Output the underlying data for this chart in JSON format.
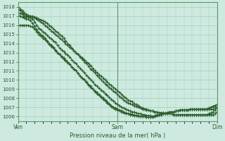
{
  "xlabel": "Pression niveau de la mer( hPa )",
  "bg_color": "#ceeae0",
  "grid_color": "#9ecfb8",
  "line_color": "#2d5e2d",
  "marker_color": "#2d5e2d",
  "ylim": [
    1005.5,
    1018.5
  ],
  "yticks": [
    1006,
    1007,
    1008,
    1009,
    1010,
    1011,
    1012,
    1013,
    1014,
    1015,
    1016,
    1017,
    1018
  ],
  "xtick_labels": [
    "Ven",
    "Sam",
    "Dim"
  ],
  "xtick_positions": [
    0,
    48,
    96
  ],
  "total_points": 97,
  "series": [
    [
      1018.0,
      1017.8,
      1017.6,
      1017.4,
      1017.2,
      1017.1,
      1017.0,
      1017.0,
      1016.9,
      1016.8,
      1016.7,
      1016.6,
      1016.5,
      1016.4,
      1016.2,
      1016.0,
      1015.8,
      1015.6,
      1015.4,
      1015.2,
      1015.0,
      1014.8,
      1014.6,
      1014.3,
      1014.0,
      1013.8,
      1013.5,
      1013.2,
      1013.0,
      1012.8,
      1012.5,
      1012.3,
      1012.0,
      1011.8,
      1011.5,
      1011.2,
      1011.0,
      1010.8,
      1010.5,
      1010.3,
      1010.0,
      1009.8,
      1009.6,
      1009.4,
      1009.2,
      1009.0,
      1008.8,
      1008.6,
      1008.4,
      1008.2,
      1008.0,
      1007.8,
      1007.6,
      1007.5,
      1007.4,
      1007.3,
      1007.2,
      1007.1,
      1007.0,
      1006.9,
      1006.8,
      1006.8,
      1006.7,
      1006.7,
      1006.6,
      1006.6,
      1006.5,
      1006.5,
      1006.4,
      1006.4,
      1006.4,
      1006.3,
      1006.3,
      1006.3,
      1006.3,
      1006.2,
      1006.2,
      1006.2,
      1006.2,
      1006.2,
      1006.2,
      1006.2,
      1006.2,
      1006.2,
      1006.2,
      1006.2,
      1006.2,
      1006.2,
      1006.2,
      1006.2,
      1006.2,
      1006.2,
      1006.2,
      1006.2,
      1006.2,
      1006.3,
      1006.5
    ],
    [
      1017.8,
      1017.6,
      1017.4,
      1017.2,
      1017.1,
      1017.0,
      1017.0,
      1016.9,
      1016.8,
      1016.7,
      1016.5,
      1016.4,
      1016.2,
      1016.0,
      1015.8,
      1015.6,
      1015.4,
      1015.2,
      1015.0,
      1014.8,
      1014.6,
      1014.4,
      1014.2,
      1014.0,
      1013.8,
      1013.6,
      1013.4,
      1013.2,
      1013.0,
      1012.8,
      1012.6,
      1012.4,
      1012.2,
      1012.0,
      1011.8,
      1011.6,
      1011.3,
      1011.0,
      1010.8,
      1010.6,
      1010.4,
      1010.2,
      1010.0,
      1009.8,
      1009.6,
      1009.4,
      1009.2,
      1009.0,
      1008.8,
      1008.6,
      1008.4,
      1008.2,
      1008.0,
      1007.8,
      1007.7,
      1007.6,
      1007.4,
      1007.3,
      1007.2,
      1007.0,
      1006.9,
      1006.8,
      1006.8,
      1006.7,
      1006.6,
      1006.6,
      1006.5,
      1006.5,
      1006.4,
      1006.4,
      1006.4,
      1006.3,
      1006.3,
      1006.3,
      1006.3,
      1006.2,
      1006.2,
      1006.2,
      1006.2,
      1006.2,
      1006.2,
      1006.2,
      1006.2,
      1006.2,
      1006.2,
      1006.2,
      1006.2,
      1006.2,
      1006.2,
      1006.2,
      1006.2,
      1006.2,
      1006.3,
      1006.4,
      1006.5,
      1006.7,
      1006.9
    ],
    [
      1017.4,
      1017.3,
      1017.2,
      1017.0,
      1016.9,
      1016.9,
      1016.8,
      1016.7,
      1016.4,
      1016.0,
      1015.7,
      1015.5,
      1015.3,
      1015.1,
      1014.9,
      1014.7,
      1014.5,
      1014.3,
      1014.1,
      1013.8,
      1013.5,
      1013.3,
      1013.1,
      1012.9,
      1012.7,
      1012.5,
      1012.2,
      1012.0,
      1011.8,
      1011.5,
      1011.3,
      1011.0,
      1010.8,
      1010.5,
      1010.3,
      1010.0,
      1009.8,
      1009.5,
      1009.3,
      1009.1,
      1008.9,
      1008.7,
      1008.5,
      1008.3,
      1008.1,
      1007.9,
      1007.7,
      1007.5,
      1007.3,
      1007.2,
      1007.0,
      1006.9,
      1006.8,
      1006.7,
      1006.6,
      1006.5,
      1006.5,
      1006.4,
      1006.3,
      1006.3,
      1006.2,
      1006.2,
      1006.1,
      1006.1,
      1006.1,
      1006.0,
      1006.1,
      1006.2,
      1006.2,
      1006.3,
      1006.3,
      1006.4,
      1006.4,
      1006.5,
      1006.5,
      1006.5,
      1006.6,
      1006.6,
      1006.7,
      1006.7,
      1006.7,
      1006.7,
      1006.7,
      1006.8,
      1006.8,
      1006.8,
      1006.8,
      1006.8,
      1006.8,
      1006.8,
      1006.8,
      1006.8,
      1006.8,
      1006.8,
      1006.8,
      1006.9,
      1007.0
    ],
    [
      1017.1,
      1017.0,
      1016.9,
      1016.8,
      1016.7,
      1016.7,
      1016.5,
      1016.2,
      1015.9,
      1015.5,
      1015.2,
      1015.0,
      1014.8,
      1014.6,
      1014.3,
      1014.0,
      1013.8,
      1013.6,
      1013.3,
      1013.0,
      1012.8,
      1012.6,
      1012.4,
      1012.2,
      1012.0,
      1011.7,
      1011.4,
      1011.2,
      1011.0,
      1010.7,
      1010.4,
      1010.2,
      1010.0,
      1009.7,
      1009.4,
      1009.2,
      1009.0,
      1008.7,
      1008.5,
      1008.3,
      1008.1,
      1007.9,
      1007.7,
      1007.5,
      1007.3,
      1007.1,
      1006.9,
      1006.8,
      1006.7,
      1006.6,
      1006.5,
      1006.4,
      1006.3,
      1006.3,
      1006.2,
      1006.2,
      1006.1,
      1006.1,
      1006.0,
      1006.0,
      1006.0,
      1006.0,
      1005.9,
      1005.9,
      1005.9,
      1005.9,
      1006.0,
      1006.1,
      1006.2,
      1006.2,
      1006.3,
      1006.3,
      1006.4,
      1006.5,
      1006.5,
      1006.5,
      1006.6,
      1006.6,
      1006.7,
      1006.7,
      1006.7,
      1006.7,
      1006.7,
      1006.8,
      1006.8,
      1006.8,
      1006.8,
      1006.8,
      1006.8,
      1006.8,
      1006.8,
      1006.8,
      1006.9,
      1007.0,
      1007.1,
      1007.2,
      1007.3
    ],
    [
      1016.0,
      1016.0,
      1016.0,
      1016.0,
      1016.0,
      1016.0,
      1015.9,
      1015.8,
      1015.6,
      1015.3,
      1015.0,
      1014.8,
      1014.6,
      1014.4,
      1014.2,
      1013.9,
      1013.7,
      1013.5,
      1013.2,
      1013.0,
      1012.8,
      1012.5,
      1012.3,
      1012.1,
      1011.9,
      1011.7,
      1011.4,
      1011.2,
      1011.0,
      1010.7,
      1010.4,
      1010.2,
      1010.0,
      1009.8,
      1009.5,
      1009.3,
      1009.0,
      1008.8,
      1008.6,
      1008.4,
      1008.2,
      1008.0,
      1007.8,
      1007.6,
      1007.4,
      1007.2,
      1007.0,
      1006.9,
      1006.8,
      1006.7,
      1006.6,
      1006.5,
      1006.4,
      1006.3,
      1006.3,
      1006.2,
      1006.2,
      1006.1,
      1006.1,
      1006.0,
      1006.0,
      1006.0,
      1005.9,
      1005.9,
      1005.9,
      1005.9,
      1006.0,
      1006.1,
      1006.2,
      1006.2,
      1006.3,
      1006.3,
      1006.4,
      1006.5,
      1006.5,
      1006.5,
      1006.6,
      1006.6,
      1006.7,
      1006.7,
      1006.7,
      1006.7,
      1006.7,
      1006.8,
      1006.8,
      1006.8,
      1006.8,
      1006.8,
      1006.8,
      1006.8,
      1006.8,
      1006.8,
      1006.9,
      1007.0,
      1007.1,
      1007.2,
      1007.3
    ]
  ]
}
